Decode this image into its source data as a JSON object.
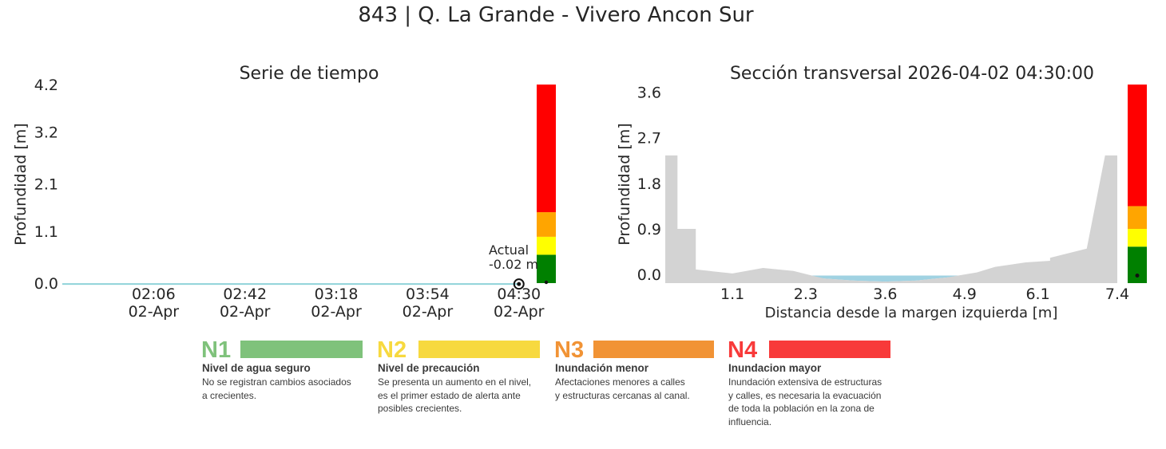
{
  "title": "843 | Q. La Grande - Vivero Ancon Sur",
  "chart_data": [
    {
      "type": "line",
      "title": "Serie de tiempo",
      "ylabel": "Profundidad [m]",
      "xlabel": "",
      "yticks": [
        "0.0",
        "1.1",
        "2.1",
        "3.2",
        "4.2"
      ],
      "ylim": [
        0,
        4.2
      ],
      "xticks": [
        {
          "time": "02:06",
          "date": "02-Apr"
        },
        {
          "time": "02:42",
          "date": "02-Apr"
        },
        {
          "time": "03:18",
          "date": "02-Apr"
        },
        {
          "time": "03:54",
          "date": "02-Apr"
        },
        {
          "time": "04:30",
          "date": "02-Apr"
        }
      ],
      "series": [
        {
          "x": [
            "01:30",
            "02:06",
            "02:42",
            "03:18",
            "03:54",
            "04:30"
          ],
          "values": [
            -0.02,
            -0.02,
            -0.02,
            -0.02,
            -0.02,
            -0.02
          ],
          "color": "#8fd3d9"
        }
      ],
      "current": {
        "time": "04:30",
        "value": -0.02
      },
      "annotation": {
        "line1": "Actual",
        "line2": "-0.02 m"
      },
      "alert_bar": [
        {
          "level": "N1",
          "from": 0.0,
          "to": 0.6,
          "color": "#008000"
        },
        {
          "level": "N2",
          "from": 0.6,
          "to": 0.98,
          "color": "#ffff00"
        },
        {
          "level": "N3",
          "from": 0.98,
          "to": 1.5,
          "color": "#ffa500"
        },
        {
          "level": "N4",
          "from": 1.5,
          "to": 4.2,
          "color": "#ff0000"
        }
      ],
      "grid": false
    },
    {
      "type": "area",
      "title": "Sección transversal 2026-04-02 04:30:00",
      "ylabel": "Profundidad [m]",
      "xlabel": "Distancia desde la margen izquierda [m]",
      "yticks": [
        "0.0",
        "0.9",
        "1.8",
        "2.7",
        "3.6"
      ],
      "xticks": [
        "1.1",
        "2.3",
        "3.6",
        "4.9",
        "6.1",
        "7.4"
      ],
      "xlim": [
        0,
        7.4
      ],
      "ylim": [
        -0.17,
        3.75
      ],
      "bed_profile": {
        "x": [
          0,
          0,
          0.2,
          0.2,
          0.5,
          0.5,
          1.1,
          1.6,
          2.1,
          2.6,
          3.1,
          3.6,
          4.1,
          4.6,
          5.1,
          5.4,
          5.9,
          6.3,
          6.3,
          6.9,
          7.2,
          7.4,
          7.4
        ],
        "y": [
          -0.17,
          2.35,
          2.35,
          0.9,
          0.9,
          0.1,
          0.02,
          0.13,
          0.07,
          -0.08,
          -0.12,
          -0.14,
          -0.12,
          -0.06,
          0.04,
          0.15,
          0.24,
          0.27,
          0.33,
          0.51,
          2.35,
          2.35,
          -0.17
        ],
        "color": "#d3d3d3"
      },
      "water": {
        "x": [
          2.3,
          2.6,
          3.1,
          3.6,
          4.1,
          4.6,
          4.9
        ],
        "bottom": [
          -0.02,
          -0.08,
          -0.12,
          -0.14,
          -0.12,
          -0.06,
          -0.02
        ],
        "surface": -0.02,
        "color": "#a0d2e2"
      },
      "alert_bar": [
        {
          "level": "N1",
          "from": -0.17,
          "to": 0.55,
          "color": "#008000"
        },
        {
          "level": "N2",
          "from": 0.55,
          "to": 0.9,
          "color": "#ffff00"
        },
        {
          "level": "N3",
          "from": 0.9,
          "to": 1.35,
          "color": "#ffa500"
        },
        {
          "level": "N4",
          "from": 1.35,
          "to": 3.75,
          "color": "#ff0000"
        }
      ],
      "current": {
        "value": -0.02
      },
      "grid": false
    }
  ],
  "legend": {
    "levels": [
      {
        "code": "N1",
        "color": "#7fc27b",
        "name": "Nivel de agua seguro",
        "desc": [
          "No se registran cambios asociados",
          "a crecientes."
        ]
      },
      {
        "code": "N2",
        "color": "#f7d93f",
        "name": "Nivel de precaución",
        "desc": [
          "Se presenta un aumento en el nivel,",
          "es el primer estado de alerta ante",
          "posibles crecientes."
        ]
      },
      {
        "code": "N3",
        "color": "#f19335",
        "name": "Inundación menor",
        "desc": [
          "Afectaciones menores a calles",
          "y estructuras cercanas al canal."
        ]
      },
      {
        "code": "N4",
        "color": "#f83a3a",
        "name": "Inundacion mayor",
        "desc": [
          "Inundación extensiva de estructuras",
          "y calles, es necesaria la evacuación",
          "de toda la población en la zona de",
          "influencia."
        ]
      }
    ]
  }
}
